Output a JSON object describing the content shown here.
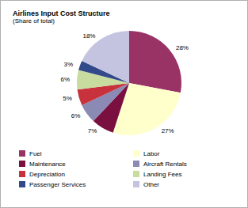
{
  "chart_data": {
    "type": "pie",
    "title": "Airlines Input Cost Structure",
    "subtitle": "(Share of total)",
    "categories": [
      "Fuel",
      "Labor",
      "Maintenance",
      "Aircraft Rentals",
      "Depreciation",
      "Landing Fees",
      "Passenger Services",
      "Other"
    ],
    "values": [
      28,
      27,
      7,
      6,
      5,
      6,
      3,
      18
    ],
    "value_labels": [
      "28%",
      "27%",
      "7%",
      "6%",
      "5%",
      "6%",
      "3%",
      "18%"
    ],
    "colors": [
      "#993366",
      "#ffffcc",
      "#7a1040",
      "#8a8ab4",
      "#c8323c",
      "#c8dca0",
      "#334a8a",
      "#c4c4e0"
    ],
    "data_labels": true,
    "legend": "bottom"
  }
}
